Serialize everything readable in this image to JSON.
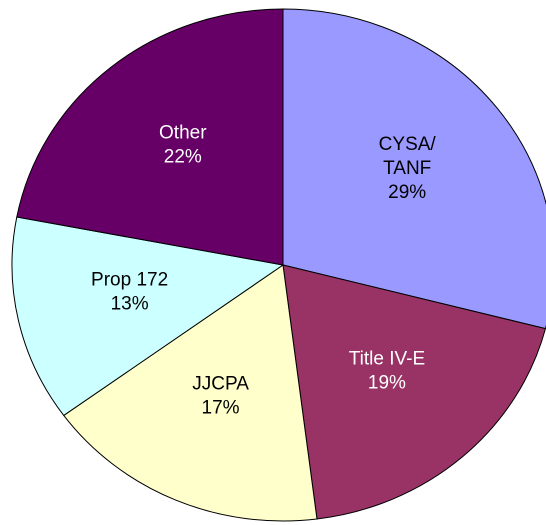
{
  "chart_data": {
    "type": "pie",
    "categories": [
      "CYSA/TANF",
      "Title IV-E",
      "JJCPA",
      "Prop 172",
      "Other"
    ],
    "values": [
      29,
      19,
      17,
      13,
      22
    ],
    "value_labels": [
      "29%",
      "19%",
      "17%",
      "13%",
      "22%"
    ],
    "colors": [
      "#9999ff",
      "#993366",
      "#ffffcc",
      "#ccffff",
      "#660066"
    ]
  }
}
